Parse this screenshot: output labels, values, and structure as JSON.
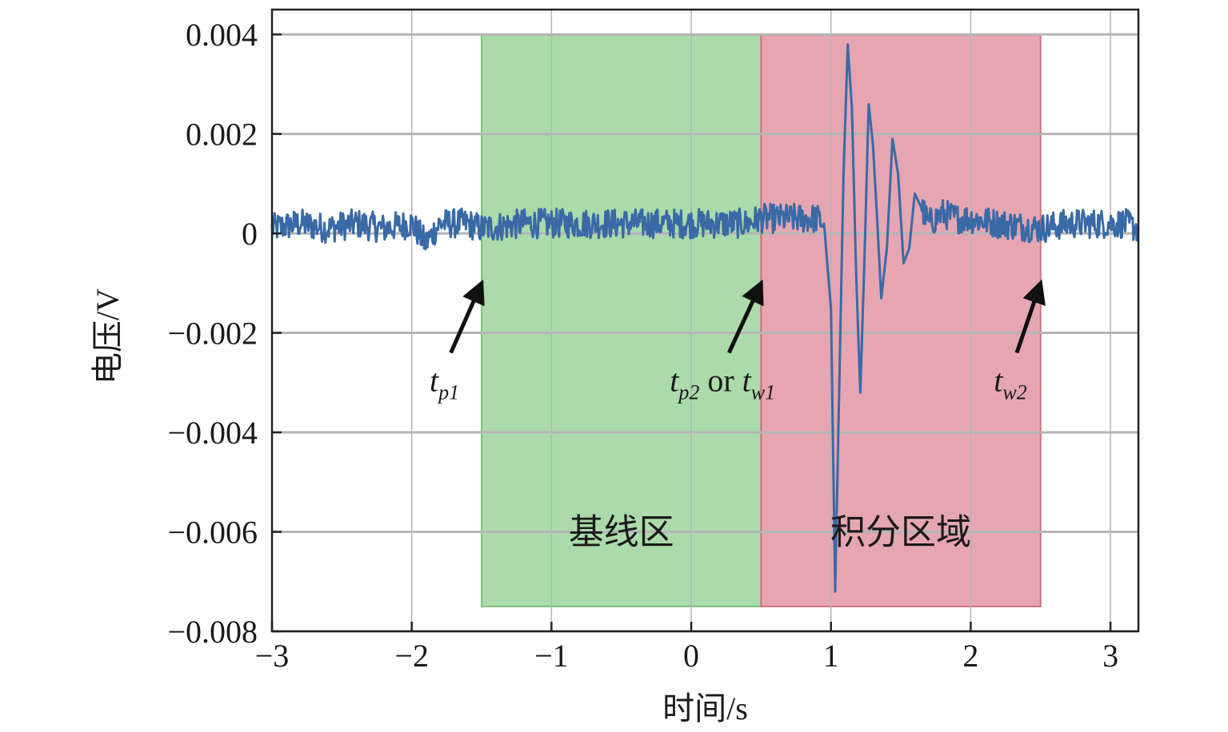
{
  "chart_data": {
    "type": "line",
    "title": "",
    "xlabel": "时间/s",
    "ylabel": "电压/V",
    "xlim": [
      -3,
      3.2
    ],
    "ylim": [
      -0.008,
      0.0045
    ],
    "xticks": [
      -3,
      -2,
      -1,
      0,
      1,
      2,
      3
    ],
    "xtick_labels": [
      "−3",
      "−2",
      "−1",
      "0",
      "1",
      "2",
      "3"
    ],
    "yticks": [
      0.004,
      0.002,
      0,
      -0.002,
      -0.004,
      -0.006,
      -0.008
    ],
    "ytick_labels": [
      "0.004",
      "0.002",
      "0",
      "−0.002",
      "−0.004",
      "−0.006",
      "−0.008"
    ],
    "grid": true,
    "colors": {
      "series": "#3a6aa6",
      "baseline_region": "#8fce8f",
      "integration_region": "#dc8898"
    },
    "regions": [
      {
        "name": "基线区",
        "x_start": -1.5,
        "x_end": 0.5,
        "y_start": -0.0075,
        "y_end": 0.004
      },
      {
        "name": "积分区域",
        "x_start": 0.5,
        "x_end": 2.5,
        "y_start": -0.0075,
        "y_end": 0.004
      }
    ],
    "annotations": [
      {
        "text_main": "t",
        "text_sub": "p1",
        "arrow_to": [
          -1.5,
          -0.001
        ],
        "arrow_from": [
          -1.72,
          -0.0024
        ]
      },
      {
        "text_main": "t",
        "text_sub": "p2",
        "text_mid": " or ",
        "text_main2": "t",
        "text_sub2": "w1",
        "arrow_to": [
          0.5,
          -0.001
        ],
        "arrow_from": [
          0.27,
          -0.0024
        ]
      },
      {
        "text_main": "t",
        "text_sub": "w2",
        "arrow_to": [
          2.5,
          -0.001
        ],
        "arrow_from": [
          2.33,
          -0.0024
        ]
      }
    ],
    "series": [
      {
        "x": [
          -3,
          -2.8,
          -2.6,
          -2.4,
          -2.2,
          -2.0,
          -1.9,
          -1.8,
          -1.6,
          -1.5,
          -1.2,
          -1.0,
          -0.8,
          -0.5,
          -0.2,
          0.0,
          0.2,
          0.4,
          0.5,
          0.7,
          0.9,
          0.95,
          1.0,
          1.03,
          1.06,
          1.09,
          1.12,
          1.15,
          1.18,
          1.21,
          1.24,
          1.27,
          1.3,
          1.33,
          1.36,
          1.4,
          1.44,
          1.48,
          1.52,
          1.56,
          1.6,
          1.65,
          1.7,
          1.8,
          1.9,
          2.0,
          2.2,
          2.5,
          2.7,
          2.9,
          3.1,
          3.2
        ],
        "y": [
          0.0001,
          0.0002,
          0.0001,
          0.0002,
          0.0001,
          0.0002,
          -0.0002,
          0.0002,
          0.0002,
          0.0001,
          0.0002,
          0.0002,
          0.0002,
          0.0002,
          0.0002,
          0.0002,
          0.0002,
          0.0002,
          0.0003,
          0.0003,
          0.0003,
          0.0002,
          -0.0015,
          -0.0072,
          -0.003,
          0.0012,
          0.0038,
          0.0025,
          -0.0008,
          -0.0032,
          -0.0005,
          0.0026,
          0.0018,
          0.0003,
          -0.0013,
          -0.0003,
          0.0019,
          0.0012,
          -0.0006,
          -0.0003,
          0.0008,
          0.0005,
          0.0002,
          0.0004,
          0.0003,
          0.0003,
          0.0002,
          0.0001,
          0.0002,
          0.0002,
          0.0002,
          0.0001
        ]
      }
    ]
  }
}
